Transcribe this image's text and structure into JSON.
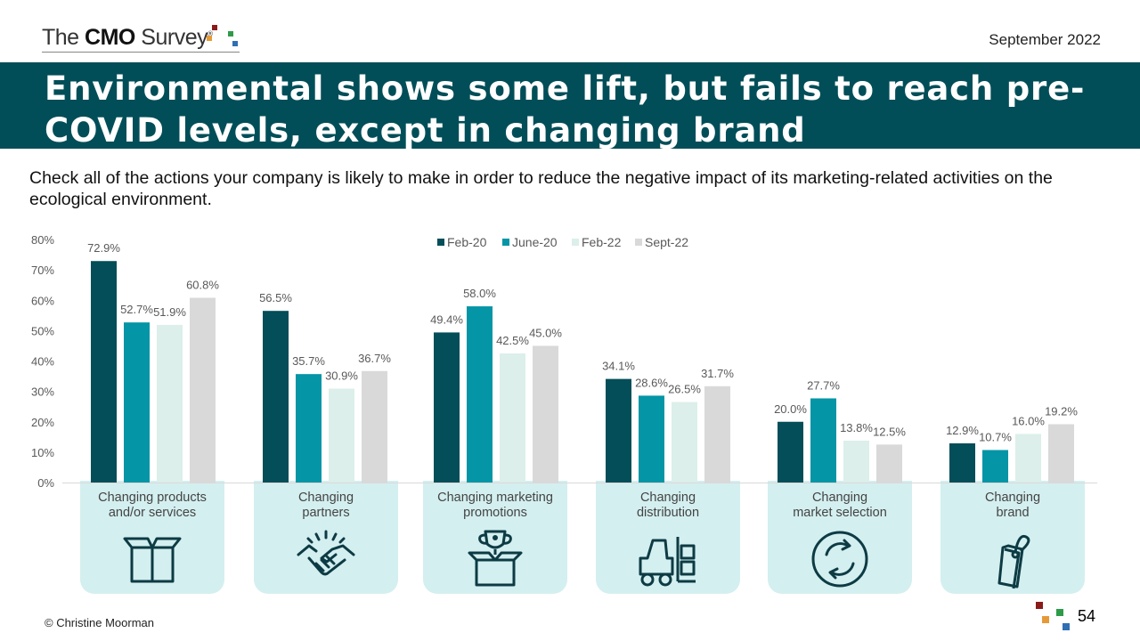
{
  "header": {
    "logo": {
      "part1": "The ",
      "part2": "CMO",
      "part3": " Survey",
      "mark": "®"
    },
    "date": "September 2022"
  },
  "title": "Environmental shows some lift, but fails to reach pre-COVID levels, except in changing brand",
  "question": "Check all of the actions your company is likely to make in order to reduce the negative impact of its marketing-related activities on the ecological environment.",
  "footer": {
    "copyright": "© Christine Moorman",
    "page": "54"
  },
  "categories_display": [
    {
      "line1": "Changing products",
      "line2": "and/or services",
      "icon": "box-icon"
    },
    {
      "line1": "Changing",
      "line2": "partners",
      "icon": "handshake-icon"
    },
    {
      "line1": "Changing marketing",
      "line2": "promotions",
      "icon": "trophy-box-icon"
    },
    {
      "line1": "Changing",
      "line2": "distribution",
      "icon": "forklift-icon"
    },
    {
      "line1": "Changing",
      "line2": "market selection",
      "icon": "recycle-circle-icon"
    },
    {
      "line1": "Changing",
      "line2": "brand",
      "icon": "tag-icon"
    }
  ],
  "chart_data": {
    "type": "bar",
    "categories": [
      "Changing products and/or services",
      "Changing partners",
      "Changing marketing promotions",
      "Changing distribution",
      "Changing market selection",
      "Changing brand"
    ],
    "series": [
      {
        "name": "Feb-20",
        "color": "#034e58",
        "values": [
          72.9,
          56.5,
          49.4,
          34.1,
          20.0,
          12.9
        ]
      },
      {
        "name": "June-20",
        "color": "#0495a6",
        "values": [
          52.7,
          35.7,
          58.0,
          28.6,
          27.7,
          10.7
        ]
      },
      {
        "name": "Feb-22",
        "color": "#dcefea",
        "values": [
          51.9,
          30.9,
          42.5,
          26.5,
          13.8,
          16.0
        ]
      },
      {
        "name": "Sept-22",
        "color": "#d9d9d9",
        "values": [
          60.8,
          36.7,
          45.0,
          31.7,
          12.5,
          19.2
        ]
      }
    ],
    "ylim": [
      0,
      80
    ],
    "yticks": [
      "0%",
      "10%",
      "20%",
      "30%",
      "40%",
      "50%",
      "60%",
      "70%",
      "80%"
    ],
    "data_labels": [
      [
        "72.9%",
        "56.5%",
        "49.4%",
        "34.1%",
        "20.0%",
        "12.9%"
      ],
      [
        "52.7%",
        "35.7%",
        "58.0%",
        "28.6%",
        "27.7%",
        "10.7%"
      ],
      [
        "51.9%",
        "30.9%",
        "42.5%",
        "26.5%",
        "13.8%",
        "16.0%"
      ],
      [
        "60.8%",
        "36.7%",
        "45.0%",
        "31.7%",
        "12.5%",
        "19.2%"
      ]
    ],
    "legend_position": "top-center",
    "grid": false
  }
}
